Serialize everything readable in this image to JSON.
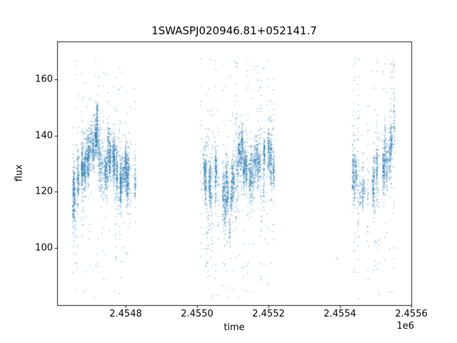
{
  "chart_data": {
    "type": "scatter",
    "title": "1SWASPJ020946.81+052141.7",
    "xlabel": "time",
    "ylabel": "flux",
    "x_offset_label": "1e6",
    "xlim": [
      2454608,
      2455600
    ],
    "ylim": [
      79.5,
      173.5
    ],
    "xticks": [
      2454800,
      2455000,
      2455200,
      2455400,
      2455600
    ],
    "xtick_labels": [
      "2.4548",
      "2.4550",
      "2.4552",
      "2.4554",
      "2.4556"
    ],
    "yticks": [
      100,
      120,
      140,
      160
    ],
    "ytick_labels": [
      "100",
      "120",
      "140",
      "160"
    ],
    "grid": false,
    "legend": false,
    "marker_color": "#1f77b4",
    "marker_alpha": 0.55,
    "seed": 7,
    "clusters": [
      {
        "t0": 2454650,
        "t1": 2454826,
        "nights": 56,
        "night_frac": 0.92,
        "bad_frac": 0.13,
        "night_width": 4,
        "night_jitter": 2.5,
        "intra_sigma_min": 2.5,
        "intra_sigma_var": 3.5,
        "pts_min": 30,
        "pts_var": 75,
        "bad_pts_min": 18,
        "bad_pts_var": 20,
        "outlier_frac": 0.035,
        "profile": [
          [
            0,
            116
          ],
          [
            0.06,
            121
          ],
          [
            0.14,
            126
          ],
          [
            0.22,
            130
          ],
          [
            0.3,
            134
          ],
          [
            0.38,
            141
          ],
          [
            0.44,
            133
          ],
          [
            0.5,
            125
          ],
          [
            0.56,
            128
          ],
          [
            0.62,
            135
          ],
          [
            0.68,
            129
          ],
          [
            0.74,
            124
          ],
          [
            0.82,
            127
          ],
          [
            0.9,
            125
          ],
          [
            1,
            121
          ]
        ]
      },
      {
        "t0": 2455012,
        "t1": 2455216,
        "nights": 60,
        "night_frac": 0.9,
        "bad_frac": 0.15,
        "night_width": 4,
        "night_jitter": 2.5,
        "intra_sigma_min": 2.5,
        "intra_sigma_var": 3.8,
        "pts_min": 30,
        "pts_var": 75,
        "bad_pts_min": 18,
        "bad_pts_var": 22,
        "outlier_frac": 0.04,
        "profile": [
          [
            0,
            130
          ],
          [
            0.07,
            125
          ],
          [
            0.14,
            120
          ],
          [
            0.22,
            127
          ],
          [
            0.3,
            122
          ],
          [
            0.38,
            117
          ],
          [
            0.46,
            124
          ],
          [
            0.54,
            133
          ],
          [
            0.6,
            131
          ],
          [
            0.68,
            125
          ],
          [
            0.76,
            130
          ],
          [
            0.84,
            128
          ],
          [
            0.92,
            132
          ],
          [
            1,
            130
          ]
        ]
      },
      {
        "t0": 2455436,
        "t1": 2455560,
        "nights": 40,
        "night_frac": 0.75,
        "bad_frac": 0.2,
        "night_width": 4,
        "night_jitter": 2.5,
        "intra_sigma_min": 2.5,
        "intra_sigma_var": 3.5,
        "pts_min": 28,
        "pts_var": 65,
        "bad_pts_min": 16,
        "bad_pts_var": 20,
        "outlier_frac": 0.04,
        "profile": [
          [
            0,
            128
          ],
          [
            0.1,
            125
          ],
          [
            0.22,
            120
          ],
          [
            0.35,
            116
          ],
          [
            0.48,
            124
          ],
          [
            0.58,
            130
          ],
          [
            0.68,
            127
          ],
          [
            0.78,
            132
          ],
          [
            0.88,
            139
          ],
          [
            1,
            143
          ]
        ]
      }
    ],
    "extra_points": [
      [
        2455200,
        146.2
      ],
      [
        2455202,
        145.6
      ],
      [
        2455203,
        146.8
      ],
      [
        2455205,
        146.0
      ],
      [
        2455206,
        145.2
      ],
      [
        2455208,
        146.5
      ],
      [
        2455390,
        96.4
      ],
      [
        2455393,
        95.9
      ]
    ]
  }
}
